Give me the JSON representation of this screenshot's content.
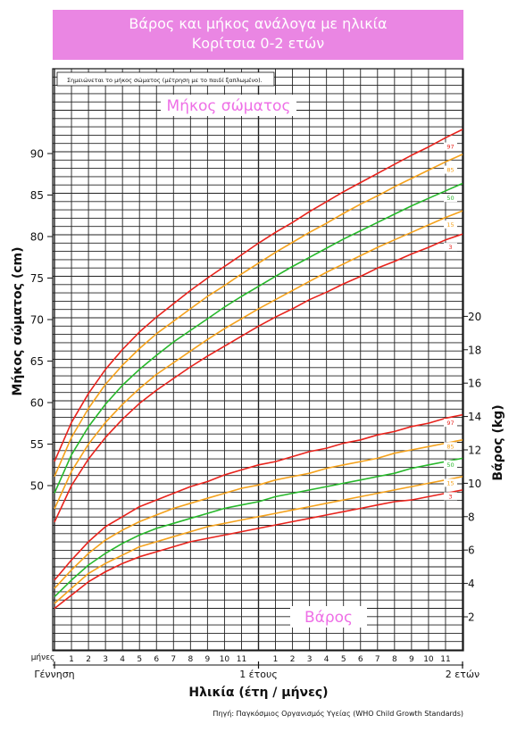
{
  "title": {
    "line1": "Βάρος και μήκος ανάλογα με ηλικία",
    "line2": "Κορίτσια 0-2 ετών"
  },
  "note": "Σημειώνεται το μήκος σώματος (μέτρηση με το παιδί ξαπλωμένο).",
  "length_label": "Μήκος σώματος",
  "weight_label": "Βάρος",
  "months_word": "μήνες",
  "x_title": "Ηλικία (έτη / μήνες)",
  "x_landmarks": [
    "Γέννηση",
    "1 έτους",
    "2 ετών"
  ],
  "source": "Πηγή: Παγκόσμιος Οργανισμός Υγείας (WHO Child Growth Standards)",
  "colors": {
    "banner": "#ea86e3",
    "label_pink": "#ee6fe6",
    "p3": "#e8231c",
    "p15": "#f5a21c",
    "p50": "#27b82b",
    "p85": "#f5a21c",
    "p97": "#e8231c"
  },
  "chart_data": {
    "type": "line",
    "x_unit": "months",
    "x": [
      0,
      1,
      2,
      3,
      4,
      5,
      6,
      7,
      8,
      9,
      10,
      11,
      12,
      13,
      14,
      15,
      16,
      17,
      18,
      19,
      20,
      21,
      22,
      23,
      24
    ],
    "x_tick_labels": [
      "1",
      "2",
      "3",
      "4",
      "5",
      "6",
      "7",
      "8",
      "9",
      "10",
      "11",
      "1",
      "2",
      "3",
      "4",
      "5",
      "6",
      "7",
      "8",
      "9",
      "10",
      "11"
    ],
    "length": {
      "ylabel": "Μήκος σώματος (cm)",
      "ylim": [
        45,
        95
      ],
      "y_tick_labels": [
        "50",
        "55",
        "60",
        "65",
        "70",
        "75",
        "80",
        "85",
        "90"
      ],
      "series": [
        {
          "name": "97",
          "values": [
            52.9,
            57.6,
            61.1,
            64.0,
            66.4,
            68.5,
            70.3,
            71.9,
            73.5,
            75.0,
            76.4,
            77.8,
            79.2,
            80.5,
            81.7,
            83.0,
            84.2,
            85.4,
            86.5,
            87.6,
            88.7,
            89.8,
            90.8,
            91.9,
            92.9
          ]
        },
        {
          "name": "85",
          "values": [
            51.1,
            55.8,
            59.3,
            62.2,
            64.5,
            66.5,
            68.3,
            69.8,
            71.3,
            72.8,
            74.1,
            75.5,
            76.8,
            78.1,
            79.3,
            80.5,
            81.6,
            82.8,
            83.9,
            84.9,
            86.0,
            87.0,
            88.0,
            89.0,
            89.9
          ]
        },
        {
          "name": "50",
          "values": [
            49.1,
            53.7,
            57.1,
            59.8,
            62.1,
            64.0,
            65.7,
            67.3,
            68.7,
            70.1,
            71.5,
            72.8,
            74.0,
            75.2,
            76.4,
            77.5,
            78.6,
            79.7,
            80.7,
            81.7,
            82.7,
            83.7,
            84.6,
            85.5,
            86.4
          ]
        },
        {
          "name": "15",
          "values": [
            47.2,
            51.7,
            55.0,
            57.6,
            59.8,
            61.7,
            63.4,
            64.8,
            66.2,
            67.6,
            68.9,
            70.1,
            71.3,
            72.4,
            73.5,
            74.6,
            75.7,
            76.7,
            77.7,
            78.7,
            79.6,
            80.5,
            81.4,
            82.3,
            83.1
          ]
        },
        {
          "name": "3",
          "values": [
            45.6,
            50.0,
            53.2,
            55.8,
            58.0,
            59.9,
            61.5,
            62.9,
            64.3,
            65.6,
            66.8,
            68.0,
            69.2,
            70.3,
            71.3,
            72.4,
            73.3,
            74.3,
            75.2,
            76.2,
            77.0,
            77.9,
            78.7,
            79.6,
            80.3
          ]
        }
      ]
    },
    "weight": {
      "ylabel": "Βάρος (kg)",
      "ylim": [
        0,
        22
      ],
      "y_tick_labels": [
        "2",
        "4",
        "6",
        "8",
        "10",
        "12",
        "14",
        "16",
        "18",
        "20"
      ],
      "series": [
        {
          "name": "97",
          "values": [
            4.2,
            5.4,
            6.5,
            7.4,
            8.0,
            8.6,
            9.0,
            9.4,
            9.8,
            10.1,
            10.5,
            10.8,
            11.1,
            11.3,
            11.6,
            11.9,
            12.1,
            12.4,
            12.6,
            12.9,
            13.1,
            13.4,
            13.6,
            13.9,
            14.1
          ]
        },
        {
          "name": "85",
          "values": [
            3.7,
            4.8,
            5.8,
            6.6,
            7.2,
            7.7,
            8.1,
            8.5,
            8.8,
            9.1,
            9.4,
            9.7,
            9.9,
            10.2,
            10.4,
            10.6,
            10.9,
            11.1,
            11.3,
            11.5,
            11.8,
            12.0,
            12.2,
            12.4,
            12.6
          ]
        },
        {
          "name": "50",
          "values": [
            3.2,
            4.2,
            5.1,
            5.8,
            6.4,
            6.9,
            7.3,
            7.6,
            7.9,
            8.2,
            8.5,
            8.7,
            8.9,
            9.2,
            9.4,
            9.6,
            9.8,
            10.0,
            10.2,
            10.4,
            10.6,
            10.9,
            11.1,
            11.3,
            11.5
          ]
        },
        {
          "name": "15",
          "values": [
            2.8,
            3.7,
            4.6,
            5.2,
            5.7,
            6.2,
            6.5,
            6.8,
            7.1,
            7.4,
            7.6,
            7.8,
            8.0,
            8.2,
            8.4,
            8.6,
            8.8,
            9.0,
            9.2,
            9.4,
            9.6,
            9.8,
            10.0,
            10.2,
            10.4
          ]
        },
        {
          "name": "3",
          "values": [
            2.5,
            3.3,
            4.1,
            4.7,
            5.2,
            5.6,
            5.9,
            6.2,
            6.5,
            6.7,
            6.9,
            7.1,
            7.3,
            7.5,
            7.7,
            7.9,
            8.1,
            8.3,
            8.5,
            8.7,
            8.9,
            9.0,
            9.2,
            9.4,
            9.6
          ]
        }
      ]
    }
  }
}
